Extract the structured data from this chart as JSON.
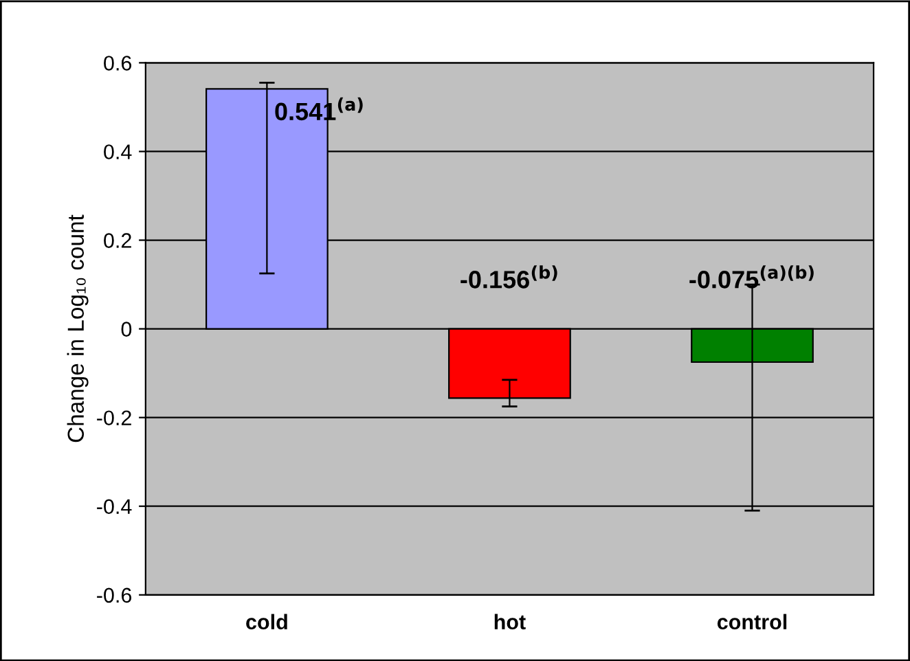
{
  "chart_data": {
    "type": "bar",
    "ylabel": "Change in Log₁₀ count",
    "categories": [
      "cold",
      "hot",
      "control"
    ],
    "values": [
      0.541,
      -0.156,
      -0.075
    ],
    "colors": [
      "#9999ff",
      "#ff0000",
      "#008000"
    ],
    "errors": [
      [
        0.125,
        0.555
      ],
      [
        -0.175,
        -0.115
      ],
      [
        -0.41,
        0.1
      ]
    ],
    "value_labels": [
      "0.541$^{(a)}$",
      "-0.156$^{(b)}$",
      "-0.075$^{(a)(b)}$"
    ],
    "ylim": [
      -0.6,
      0.6
    ],
    "yticks": [
      -0.6,
      -0.4,
      -0.2,
      0,
      0.2,
      0.4,
      0.6
    ],
    "grid": "y"
  }
}
